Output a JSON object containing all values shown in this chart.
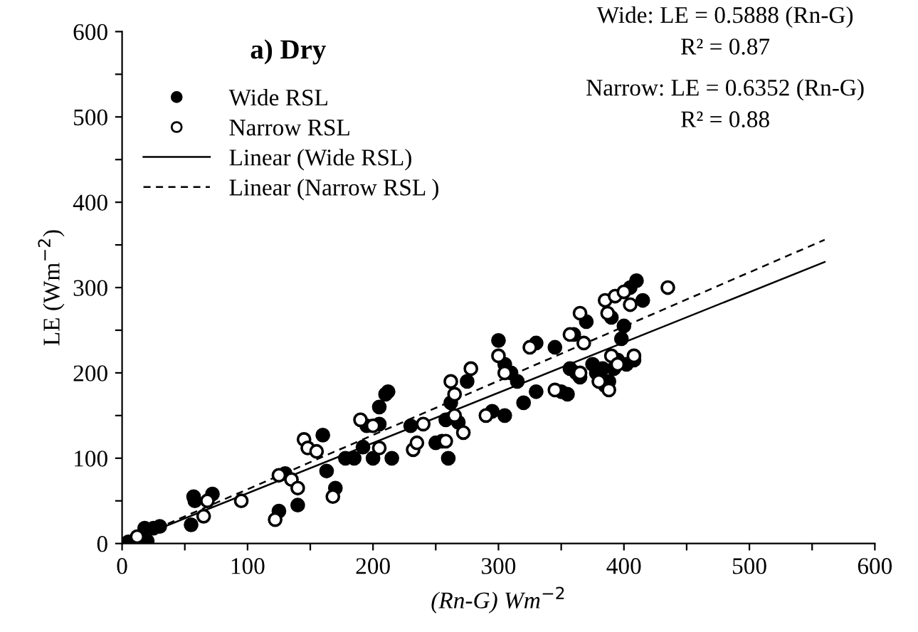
{
  "chart_data": {
    "type": "scatter",
    "title": "a) Dry",
    "xlabel": "(Rn-G) Wm$^{−2}$",
    "ylabel": "LE (Wm$^{−2}$)",
    "annotations": [
      "Wide: LE = 0.5888 (Rn-G)",
      "R² = 0.87",
      "Narrow: LE = 0.6352 (Rn-G)",
      "R² = 0.88"
    ],
    "xlim": [
      0,
      600
    ],
    "ylim": [
      0,
      600
    ],
    "xticks": [
      0,
      {
        "value": 50,
        "label": null
      },
      100,
      {
        "value": 150,
        "label": null
      },
      200,
      {
        "value": 250,
        "label": null
      },
      300,
      {
        "value": 350,
        "label": null
      },
      400,
      {
        "value": 450,
        "label": null
      },
      500,
      {
        "value": 550,
        "label": null
      },
      600
    ],
    "yticks": [
      0,
      {
        "value": 50,
        "label": null
      },
      100,
      {
        "value": 150,
        "label": null
      },
      200,
      {
        "value": 250,
        "label": null
      },
      300,
      {
        "value": 350,
        "label": null
      },
      400,
      {
        "value": 450,
        "label": null
      },
      500,
      {
        "value": 550,
        "label": null
      },
      600
    ],
    "grid": false,
    "legend": "top left",
    "series": [
      {
        "name": "Wide RSL",
        "color": "#000000",
        "marker": "circle",
        "x": [
          5,
          18,
          20,
          25,
          30,
          57,
          58,
          55,
          72,
          125,
          130,
          140,
          160,
          163,
          170,
          178,
          185,
          192,
          195,
          200,
          205,
          205,
          210,
          212,
          215,
          230,
          250,
          255,
          258,
          260,
          262,
          268,
          275,
          295,
          300,
          305,
          305,
          310,
          315,
          320,
          330,
          330,
          345,
          350,
          355,
          357,
          360,
          362,
          365,
          370,
          375,
          378,
          383,
          385,
          388,
          390,
          392,
          395,
          398,
          400,
          402,
          405,
          408,
          410,
          415
        ],
        "values": [
          2,
          18,
          3,
          18,
          20,
          55,
          50,
          22,
          58,
          38,
          82,
          45,
          127,
          85,
          65,
          100,
          100,
          113,
          138,
          100,
          160,
          140,
          175,
          178,
          100,
          138,
          118,
          120,
          145,
          100,
          165,
          142,
          190,
          155,
          238,
          210,
          150,
          200,
          190,
          165,
          178,
          235,
          230,
          178,
          175,
          205,
          245,
          200,
          195,
          260,
          210,
          200,
          205,
          185,
          190,
          265,
          205,
          215,
          240,
          255,
          210,
          300,
          215,
          308,
          285
        ]
      },
      {
        "name": "Narrow RSL",
        "color": "#000000",
        "marker": "circle",
        "x": [
          12,
          65,
          68,
          95,
          122,
          125,
          135,
          140,
          145,
          148,
          155,
          168,
          190,
          200,
          205,
          232,
          235,
          240,
          258,
          262,
          265,
          265,
          272,
          278,
          290,
          300,
          305,
          325,
          345,
          357,
          365,
          368,
          380,
          385,
          387,
          390,
          393,
          395,
          400,
          405,
          408,
          435,
          388,
          365
        ],
        "values": [
          8,
          32,
          50,
          50,
          28,
          80,
          75,
          65,
          122,
          112,
          108,
          55,
          145,
          138,
          112,
          110,
          118,
          140,
          120,
          190,
          175,
          150,
          130,
          205,
          150,
          220,
          200,
          230,
          180,
          245,
          270,
          235,
          190,
          285,
          270,
          220,
          290,
          210,
          295,
          280,
          220,
          300,
          180,
          200
        ]
      },
      {
        "name": "Linear (Wide RSL)",
        "color": "#000000",
        "type": "line",
        "marker": "none",
        "line_style": "solid",
        "x": [
          0,
          560
        ],
        "values": [
          0,
          330
        ]
      },
      {
        "name": "Linear (Narrow RSL )",
        "color": "#000000",
        "type": "line",
        "marker": "none",
        "line_style": "dashed",
        "x": [
          0,
          560
        ],
        "values": [
          0,
          356
        ]
      }
    ]
  }
}
